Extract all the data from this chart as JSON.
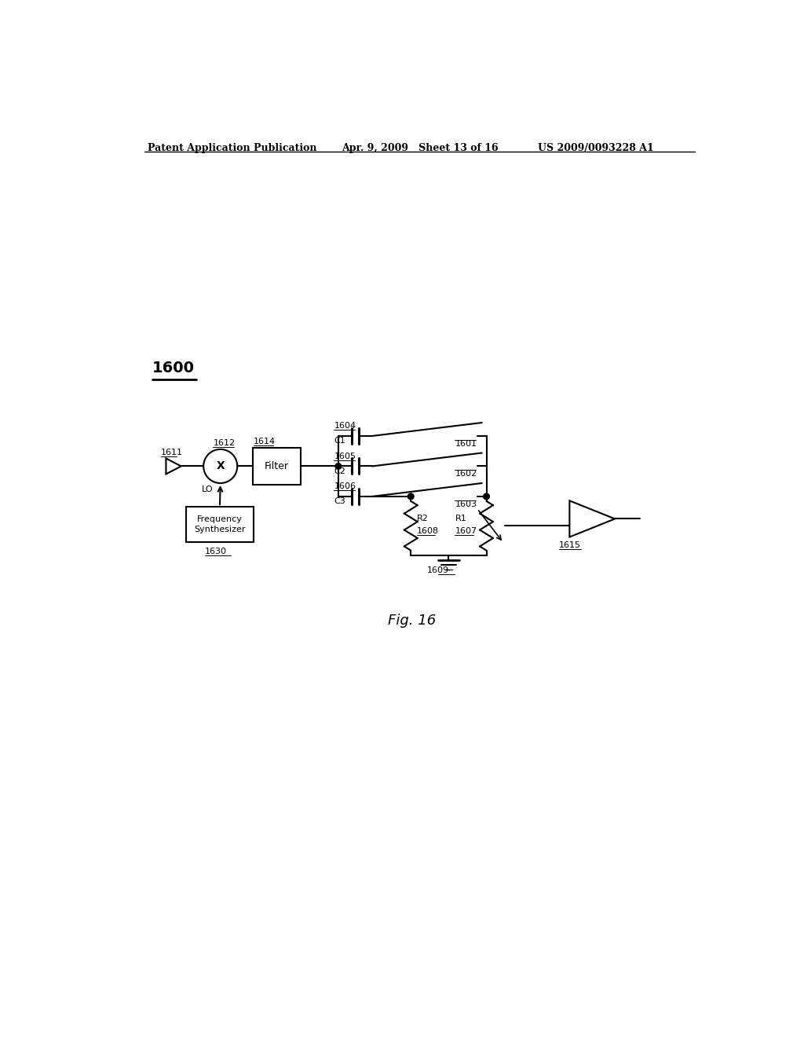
{
  "bg_color": "#ffffff",
  "line_color": "#000000",
  "header_left": "Patent Application Publication",
  "header_mid": "Apr. 9, 2009   Sheet 13 of 16",
  "header_right": "US 2009/0093228 A1",
  "diagram_label": "1600",
  "fig_label": "Fig. 16",
  "C1": "C1",
  "C2": "C2",
  "C3": "C3",
  "R1": "R1",
  "R2": "R2",
  "sw1": "1601",
  "sw2": "1602",
  "sw3": "1603",
  "cap1": "1604",
  "cap2": "1605",
  "cap3": "1606",
  "r1_label": "1607",
  "r2_label": "1608",
  "gnd": "1609",
  "mixer_label": "1612",
  "signal_in": "1611",
  "filter_label": "1614",
  "filter": "Filter",
  "freq_synth_line1": "Frequency",
  "freq_synth_line2": "Synthesizer",
  "freq_label": "1630",
  "lo_label": "LO",
  "amp_label": "1615"
}
